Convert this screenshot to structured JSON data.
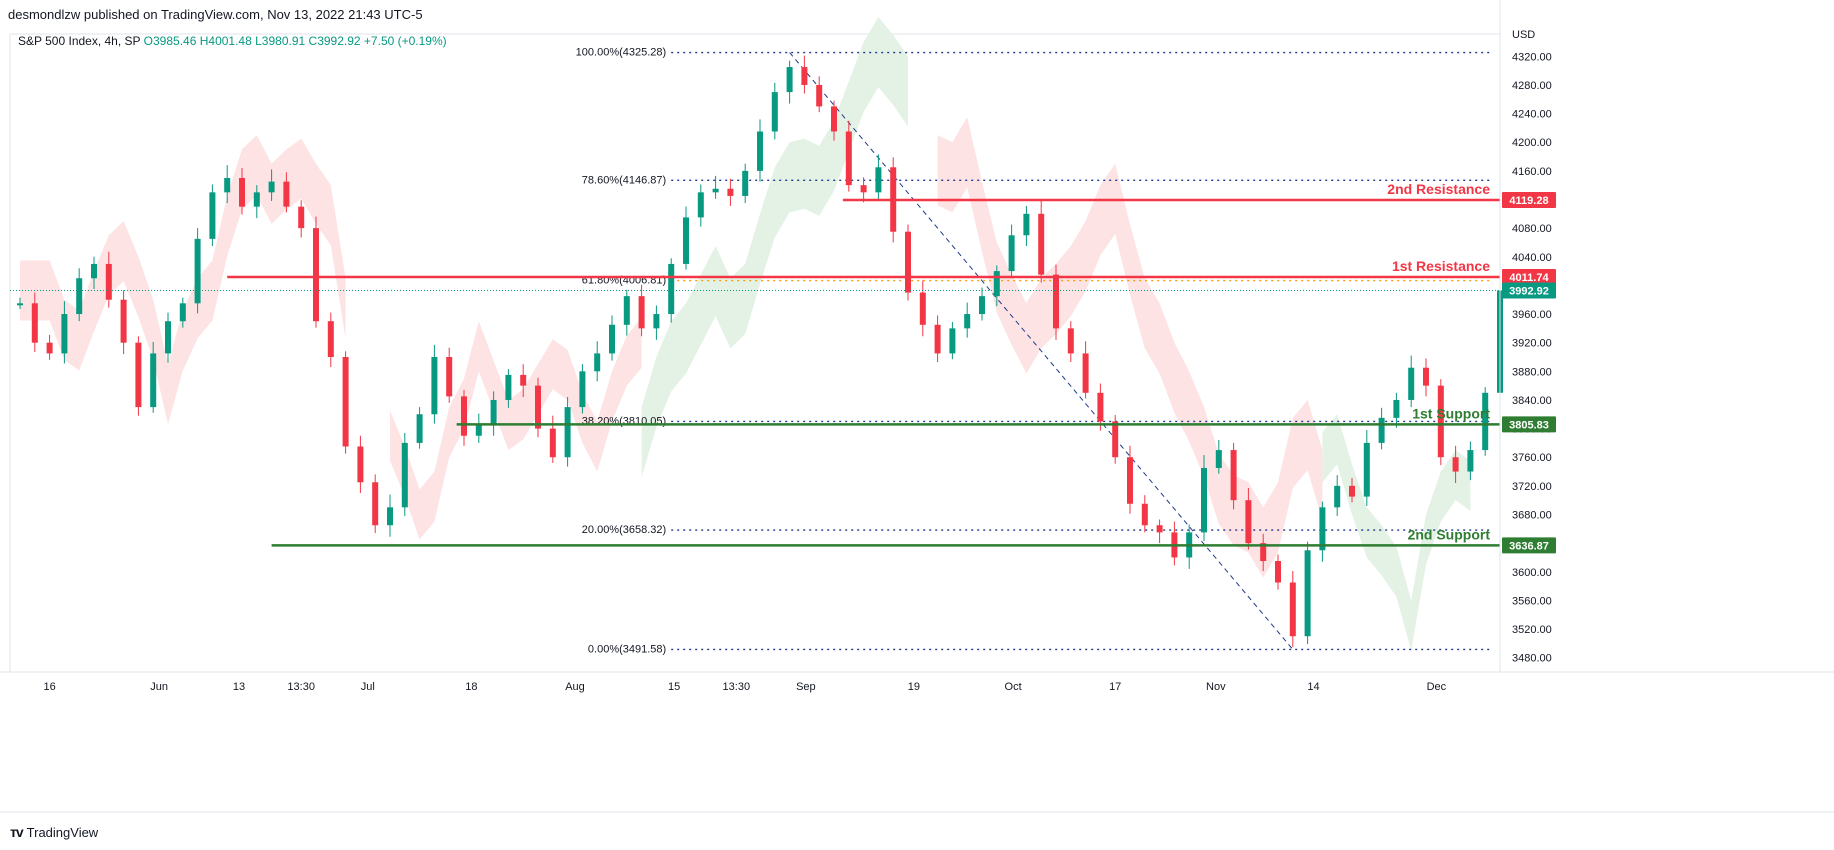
{
  "header": {
    "published": "desmondlzw published on TradingView.com, Nov 13, 2022 21:43 UTC-5",
    "symbol": "S&P 500 Index, 4h, SP",
    "o": "O3985.46",
    "h": "H4001.48",
    "l": "L3980.91",
    "c": "C3992.92",
    "change": "+7.50 (+0.19%)"
  },
  "footer": {
    "brand": "TradingView"
  },
  "chart_data": {
    "type": "candlestick",
    "currency": "USD",
    "ylim": [
      3460,
      4340
    ],
    "yticks": [
      3480,
      3520,
      3560,
      3600,
      3640,
      3680,
      3720,
      3760,
      3800,
      3840,
      3880,
      3920,
      3960,
      4000,
      4040,
      4080,
      4120,
      4160,
      4200,
      4240,
      4280,
      4320
    ],
    "ytick_labels": [
      "3480.00",
      "3520.00",
      "3560.00",
      "3600.00",
      "3640.00",
      "3680.00",
      "3720.00",
      "3760.00",
      "3800.00",
      "3840.00",
      "3880.00",
      "3920.00",
      "3960.00",
      "4000.00",
      "4040.00",
      "4080.00",
      "4120.00",
      "4160.00",
      "4200.00",
      "4240.00",
      "4280.00",
      "4320.00"
    ],
    "xlim": [
      0,
      100
    ],
    "xticks": [
      {
        "label": "16",
        "x": 2.0
      },
      {
        "label": "Jun",
        "x": 9.4
      },
      {
        "label": "13",
        "x": 14.8
      },
      {
        "label": "13:30",
        "x": 19.0
      },
      {
        "label": "Jul",
        "x": 23.5
      },
      {
        "label": "18",
        "x": 30.5
      },
      {
        "label": "Aug",
        "x": 37.5
      },
      {
        "label": "15",
        "x": 44.2
      },
      {
        "label": "13:30",
        "x": 48.4
      },
      {
        "label": "Sep",
        "x": 53.1
      },
      {
        "label": "19",
        "x": 60.4
      },
      {
        "label": "Oct",
        "x": 67.1
      },
      {
        "label": "17",
        "x": 74.0
      },
      {
        "label": "Nov",
        "x": 80.8
      },
      {
        "label": "14",
        "x": 87.4
      },
      {
        "label": "Dec",
        "x": 95.7
      }
    ],
    "price_path": [
      [
        0,
        3975
      ],
      [
        1,
        3920
      ],
      [
        2,
        3905
      ],
      [
        3,
        3960
      ],
      [
        4,
        4010
      ],
      [
        5,
        4030
      ],
      [
        6,
        3980
      ],
      [
        7,
        3920
      ],
      [
        8,
        3830
      ],
      [
        9,
        3905
      ],
      [
        10,
        3950
      ],
      [
        11,
        3975
      ],
      [
        12,
        4065
      ],
      [
        13,
        4130
      ],
      [
        14,
        4150
      ],
      [
        15,
        4110
      ],
      [
        16,
        4130
      ],
      [
        17,
        4145
      ],
      [
        18,
        4110
      ],
      [
        19,
        4080
      ],
      [
        20,
        3950
      ],
      [
        21,
        3900
      ],
      [
        22,
        3775
      ],
      [
        23,
        3725
      ],
      [
        24,
        3665
      ],
      [
        25,
        3690
      ],
      [
        26,
        3780
      ],
      [
        27,
        3820
      ],
      [
        28,
        3900
      ],
      [
        29,
        3845
      ],
      [
        30,
        3790
      ],
      [
        31,
        3805
      ],
      [
        32,
        3840
      ],
      [
        33,
        3875
      ],
      [
        34,
        3860
      ],
      [
        35,
        3800
      ],
      [
        36,
        3760
      ],
      [
        37,
        3830
      ],
      [
        38,
        3880
      ],
      [
        39,
        3905
      ],
      [
        40,
        3945
      ],
      [
        41,
        3985
      ],
      [
        42,
        3940
      ],
      [
        43,
        3960
      ],
      [
        44,
        4030
      ],
      [
        45,
        4095
      ],
      [
        46,
        4130
      ],
      [
        47,
        4135
      ],
      [
        48,
        4125
      ],
      [
        49,
        4160
      ],
      [
        50,
        4215
      ],
      [
        51,
        4270
      ],
      [
        52,
        4305
      ],
      [
        53,
        4280
      ],
      [
        54,
        4250
      ],
      [
        55,
        4215
      ],
      [
        56,
        4140
      ],
      [
        57,
        4130
      ],
      [
        58,
        4165
      ],
      [
        59,
        4075
      ],
      [
        60,
        3990
      ],
      [
        61,
        3945
      ],
      [
        62,
        3905
      ],
      [
        63,
        3940
      ],
      [
        64,
        3960
      ],
      [
        65,
        3985
      ],
      [
        66,
        4020
      ],
      [
        67,
        4070
      ],
      [
        68,
        4100
      ],
      [
        69,
        4015
      ],
      [
        70,
        3940
      ],
      [
        71,
        3905
      ],
      [
        72,
        3850
      ],
      [
        73,
        3810
      ],
      [
        74,
        3760
      ],
      [
        75,
        3695
      ],
      [
        76,
        3665
      ],
      [
        77,
        3655
      ],
      [
        78,
        3620
      ],
      [
        79,
        3655
      ],
      [
        80,
        3745
      ],
      [
        81,
        3770
      ],
      [
        82,
        3700
      ],
      [
        83,
        3640
      ],
      [
        84,
        3615
      ],
      [
        85,
        3585
      ],
      [
        86,
        3510
      ],
      [
        87,
        3630
      ],
      [
        88,
        3690
      ],
      [
        89,
        3720
      ],
      [
        90,
        3705
      ],
      [
        91,
        3780
      ],
      [
        92,
        3815
      ],
      [
        93,
        3840
      ],
      [
        94,
        3885
      ],
      [
        95,
        3860
      ],
      [
        96,
        3760
      ],
      [
        97,
        3740
      ],
      [
        98,
        3770
      ],
      [
        99,
        3850
      ],
      [
        100,
        3992.92
      ]
    ],
    "fib_levels": [
      {
        "label": "100.00%(4325.28)",
        "value": 4325.28,
        "color": "#1e3a8a"
      },
      {
        "label": "78.60%(4146.87)",
        "value": 4146.87,
        "color": "#1e3a8a"
      },
      {
        "label": "61.80%(4006.81)",
        "value": 4006.81,
        "color": "#f59e0b"
      },
      {
        "label": "38.20%(3810.05)",
        "value": 3810.05,
        "color": "#1e3a8a"
      },
      {
        "label": "20.00%(3658.32)",
        "value": 3658.32,
        "color": "#1e3a8a"
      },
      {
        "label": "0.00%(3491.58)",
        "value": 3491.58,
        "color": "#1e3a8a"
      }
    ],
    "levels": [
      {
        "name": "2nd Resistance",
        "value": 4119.28,
        "label": "4119.28",
        "color": "#f23645",
        "x_start": 55.6
      },
      {
        "name": "1st Resistance",
        "value": 4011.74,
        "label": "4011.74",
        "color": "#f23645",
        "x_start": 14.0
      },
      {
        "name": "1st Support",
        "value": 3805.83,
        "label": "3805.83",
        "color": "#2e7d32",
        "x_start": 29.5
      },
      {
        "name": "2nd Support",
        "value": 3636.87,
        "label": "3636.87",
        "color": "#2e7d32",
        "x_start": 17.0
      }
    ],
    "last_price": {
      "value": 3992.92,
      "label": "3992.92",
      "color": "#089981"
    },
    "colors": {
      "up": "#089981",
      "down": "#f23645",
      "cloud_bear": "#fde3e3",
      "cloud_bull": "#e4f2e6",
      "fib": "#1e3a8a",
      "grid": "#e0e3eb"
    }
  }
}
